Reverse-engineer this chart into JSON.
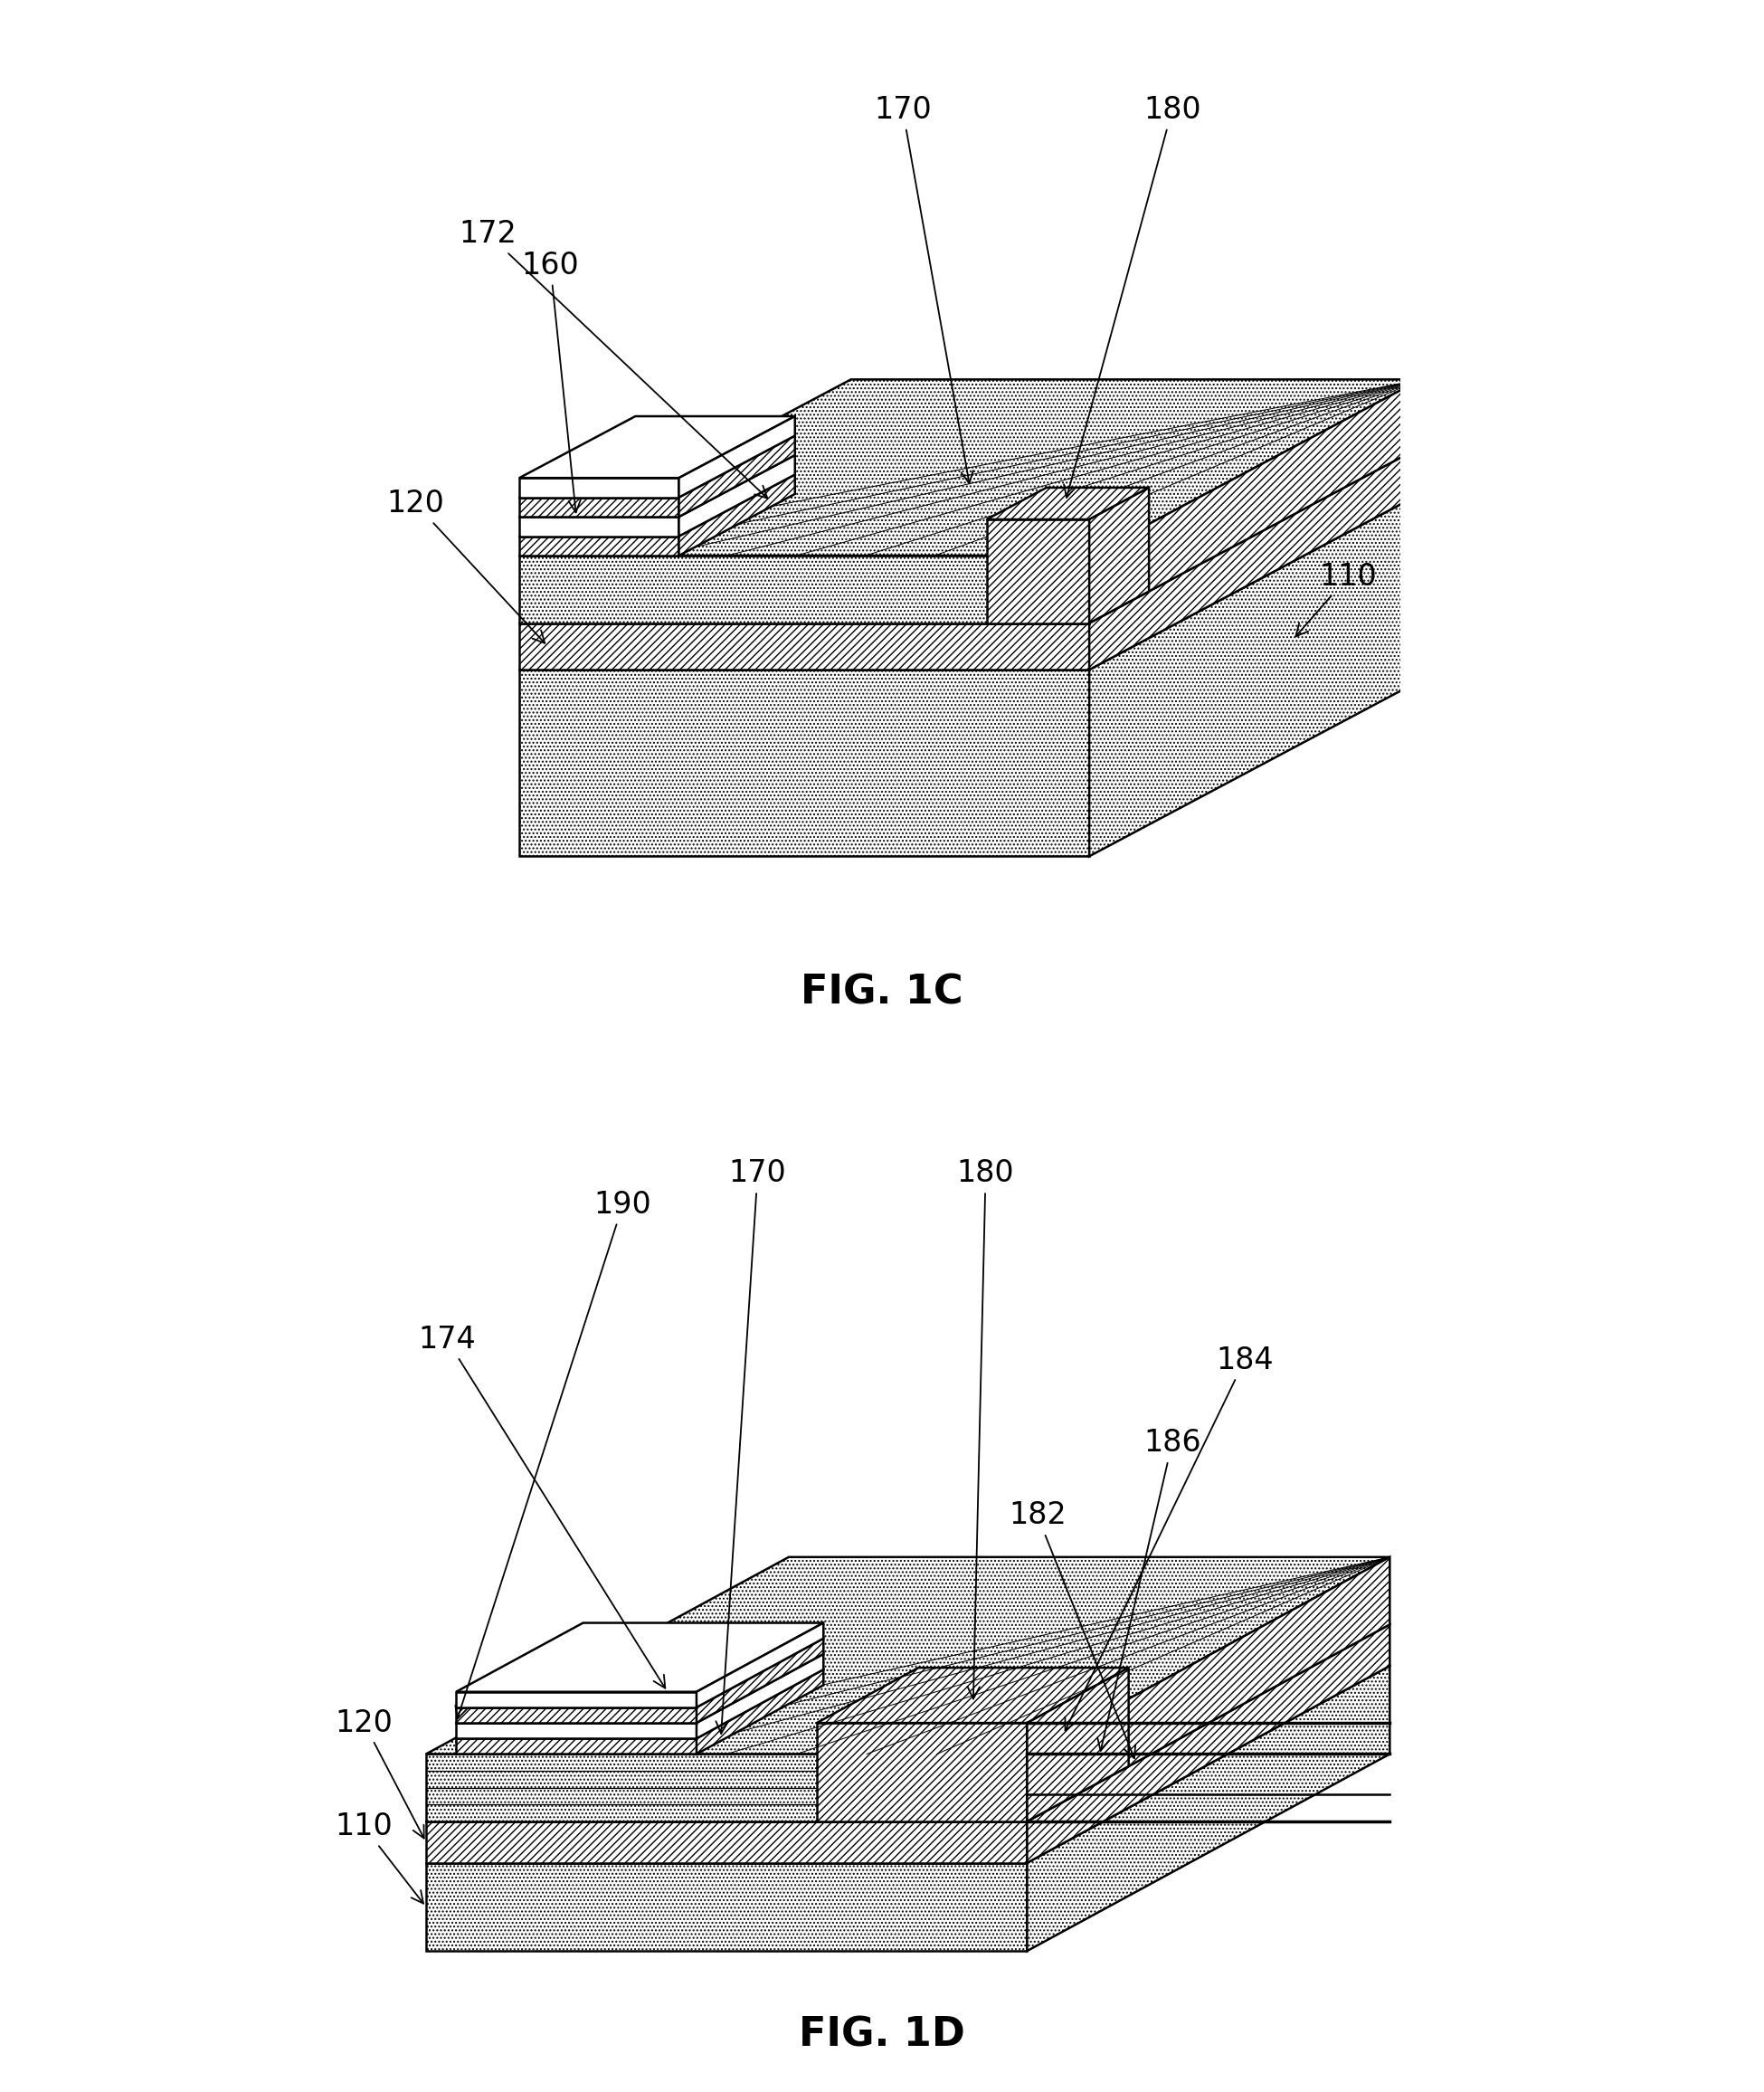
{
  "fig_labels": [
    "FIG. 1C",
    "FIG. 1D"
  ],
  "label_fontsize": 32,
  "annotation_fontsize": 24,
  "bg_color": "#ffffff",
  "fig1c": {
    "label": "FIG. 1C"
  },
  "fig1d": {
    "label": "FIG. 1D"
  }
}
